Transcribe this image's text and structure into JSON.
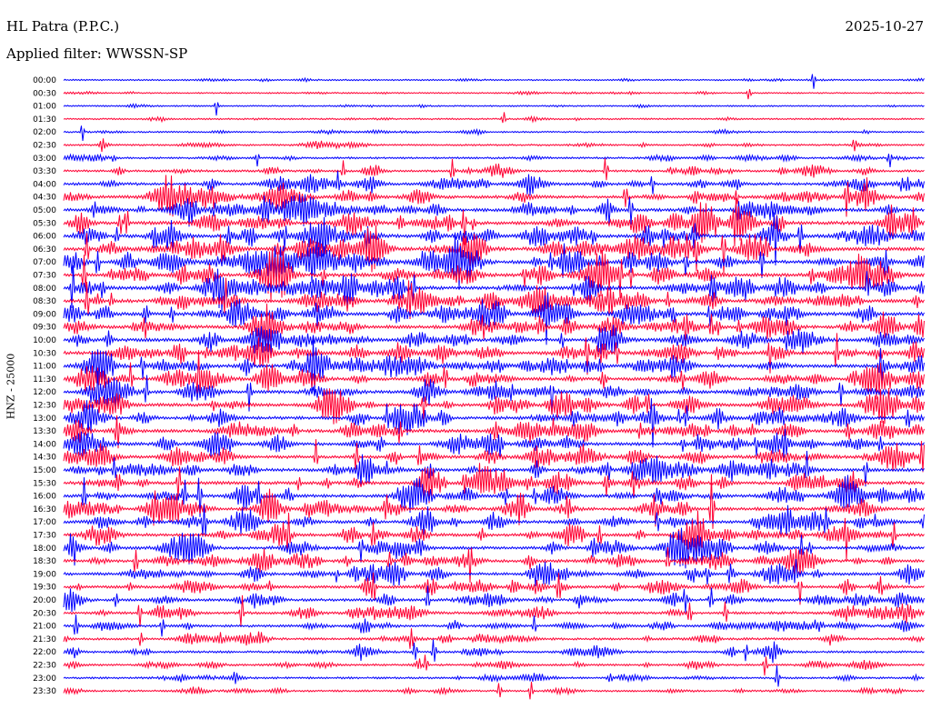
{
  "header": {
    "station": "HL Patra (P.P.C.)",
    "date": "2025-10-27",
    "filter_label": "Applied filter: WWSSN-SP"
  },
  "chart_data": {
    "type": "line",
    "title": "HL Patra (P.P.C.)",
    "ylabel": "HNZ - 25000",
    "row_labels": [
      "00:00",
      "00:30",
      "01:00",
      "01:30",
      "02:00",
      "02:30",
      "03:00",
      "03:30",
      "04:00",
      "04:30",
      "05:00",
      "05:30",
      "06:00",
      "06:30",
      "07:00",
      "07:30",
      "08:00",
      "08:30",
      "09:00",
      "09:30",
      "10:00",
      "10:30",
      "11:00",
      "11:30",
      "12:00",
      "12:30",
      "13:00",
      "13:30",
      "14:00",
      "14:30",
      "15:00",
      "15:30",
      "16:00",
      "16:30",
      "17:00",
      "17:30",
      "18:00",
      "18:30",
      "19:00",
      "19:30",
      "20:00",
      "20:30",
      "21:00",
      "21:30",
      "22:00",
      "22:30",
      "23:00",
      "23:30"
    ],
    "colors": [
      "#0000ff",
      "#ff0033"
    ],
    "activity": [
      0.12,
      0.12,
      0.12,
      0.15,
      0.18,
      0.25,
      0.35,
      0.45,
      0.65,
      0.8,
      0.9,
      0.95,
      1.0,
      1.0,
      1.0,
      1.0,
      1.0,
      0.95,
      0.95,
      0.9,
      0.9,
      0.9,
      0.9,
      0.9,
      0.85,
      0.85,
      0.85,
      0.85,
      0.85,
      0.85,
      0.85,
      0.85,
      0.85,
      0.85,
      0.8,
      0.8,
      0.8,
      0.75,
      0.75,
      0.7,
      0.65,
      0.6,
      0.55,
      0.5,
      0.45,
      0.4,
      0.35,
      0.3
    ]
  }
}
